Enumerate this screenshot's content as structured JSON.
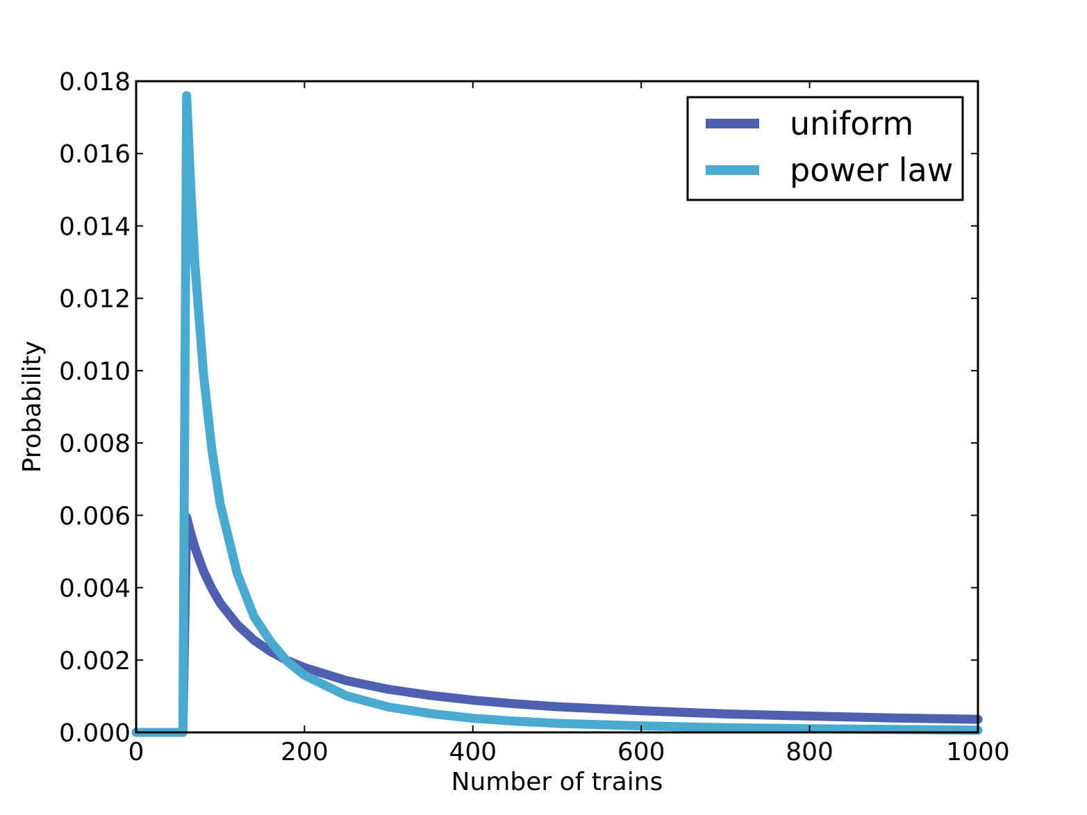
{
  "chart_data": {
    "type": "line",
    "title": "",
    "xlabel": "Number of trains",
    "ylabel": "Probability",
    "xlim": [
      0,
      1000
    ],
    "ylim": [
      0,
      0.018
    ],
    "grid": false,
    "legend_position": "top-right",
    "x_ticks": [
      0,
      200,
      400,
      600,
      800,
      1000
    ],
    "x_tick_labels": [
      "0",
      "200",
      "400",
      "600",
      "800",
      "1000"
    ],
    "y_ticks": [
      0,
      0.002,
      0.004,
      0.006,
      0.008,
      0.01,
      0.012,
      0.014,
      0.016,
      0.018
    ],
    "y_tick_labels": [
      "0.000",
      "0.002",
      "0.004",
      "0.006",
      "0.008",
      "0.010",
      "0.012",
      "0.014",
      "0.016",
      "0.018"
    ],
    "series": [
      {
        "name": "uniform",
        "color": "#5060b0",
        "x": [
          0,
          55,
          55.5,
          60,
          65,
          70,
          80,
          90,
          100,
          120,
          140,
          160,
          180,
          200,
          250,
          300,
          350,
          400,
          450,
          500,
          600,
          700,
          800,
          900,
          1000
        ],
        "y": [
          0,
          0,
          0,
          0.00595,
          0.00549,
          0.0051,
          0.00446,
          0.00397,
          0.00357,
          0.00298,
          0.00255,
          0.00223,
          0.00198,
          0.00179,
          0.00143,
          0.00119,
          0.00102,
          0.00089,
          0.00079,
          0.00071,
          0.0006,
          0.00051,
          0.00045,
          0.0004,
          0.00036
        ]
      },
      {
        "name": "power law",
        "color": "#4aaad0",
        "x": [
          0,
          55,
          55.5,
          60,
          65,
          70,
          80,
          90,
          100,
          120,
          140,
          160,
          180,
          200,
          250,
          300,
          350,
          400,
          450,
          500,
          600,
          700,
          800,
          900,
          1000
        ],
        "y": [
          0,
          0,
          0,
          0.0176,
          0.015,
          0.0129,
          0.0099,
          0.0078,
          0.0063,
          0.0044,
          0.0032,
          0.0025,
          0.00195,
          0.00158,
          0.00101,
          0.0007,
          0.00052,
          0.00039,
          0.00031,
          0.00025,
          0.00018,
          0.00013,
          0.0001,
          8e-05,
          6e-05
        ]
      }
    ]
  }
}
